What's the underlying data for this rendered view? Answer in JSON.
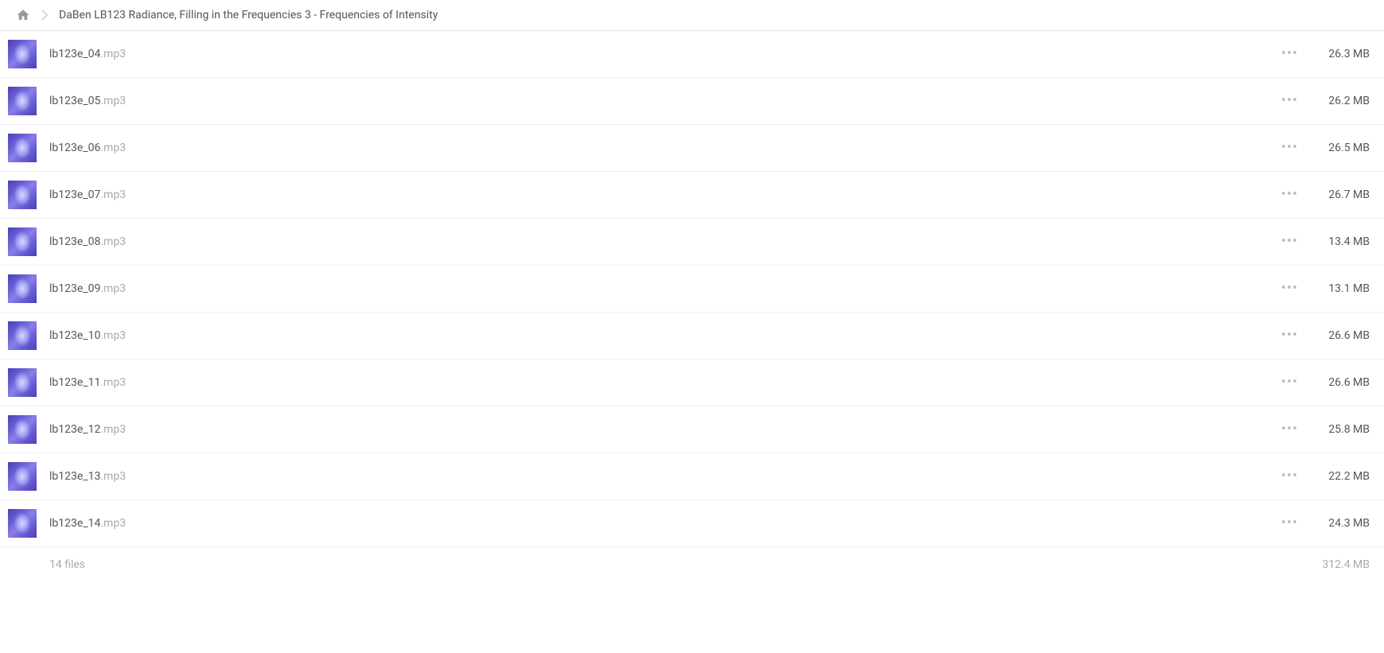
{
  "breadcrumb": {
    "title": "DaBen LB123 Radiance, Filling in the Frequencies 3 - Frequencies of Intensity"
  },
  "files": [
    {
      "name": "lb123e_04",
      "ext": ".mp3",
      "size": "26.3 MB"
    },
    {
      "name": "lb123e_05",
      "ext": ".mp3",
      "size": "26.2 MB"
    },
    {
      "name": "lb123e_06",
      "ext": ".mp3",
      "size": "26.5 MB"
    },
    {
      "name": "lb123e_07",
      "ext": ".mp3",
      "size": "26.7 MB"
    },
    {
      "name": "lb123e_08",
      "ext": ".mp3",
      "size": "13.4 MB"
    },
    {
      "name": "lb123e_09",
      "ext": ".mp3",
      "size": "13.1 MB"
    },
    {
      "name": "lb123e_10",
      "ext": ".mp3",
      "size": "26.6 MB"
    },
    {
      "name": "lb123e_11",
      "ext": ".mp3",
      "size": "26.6 MB"
    },
    {
      "name": "lb123e_12",
      "ext": ".mp3",
      "size": "25.8 MB"
    },
    {
      "name": "lb123e_13",
      "ext": ".mp3",
      "size": "22.2 MB"
    },
    {
      "name": "lb123e_14",
      "ext": ".mp3",
      "size": "24.3 MB"
    }
  ],
  "footer": {
    "count": "14 files",
    "size": "312.4 MB"
  }
}
